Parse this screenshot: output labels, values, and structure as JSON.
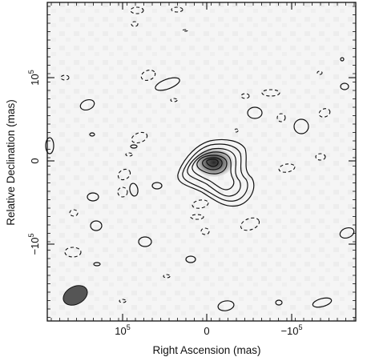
{
  "chart_data": {
    "type": "contour",
    "xlabel": "Right Ascension  (mas)",
    "ylabel": "Relative Declination  (mas)",
    "xlim": [
      190,
      -190
    ],
    "ylim": [
      -190,
      190
    ],
    "x_ticks": [
      {
        "value": 100000,
        "label": "10",
        "sup": "5"
      },
      {
        "value": 0,
        "label": "0",
        "sup": ""
      },
      {
        "value": -100000,
        "label": "−10",
        "sup": "5"
      }
    ],
    "y_ticks": [
      {
        "value": 100000,
        "label": "10",
        "sup": "5"
      },
      {
        "value": 0,
        "label": "0",
        "sup": ""
      },
      {
        "value": -100000,
        "label": "−10",
        "sup": "5"
      }
    ],
    "grid": false,
    "source": {
      "peak_x": -10,
      "peak_y": 0,
      "contour_levels": 7
    },
    "beam": {
      "x": 150,
      "y": -160,
      "major": 36,
      "minor": 22,
      "angle_deg": -25
    },
    "colors": {
      "contour": "#111111",
      "background": "#f4f4f4",
      "beam": "#555555"
    }
  }
}
